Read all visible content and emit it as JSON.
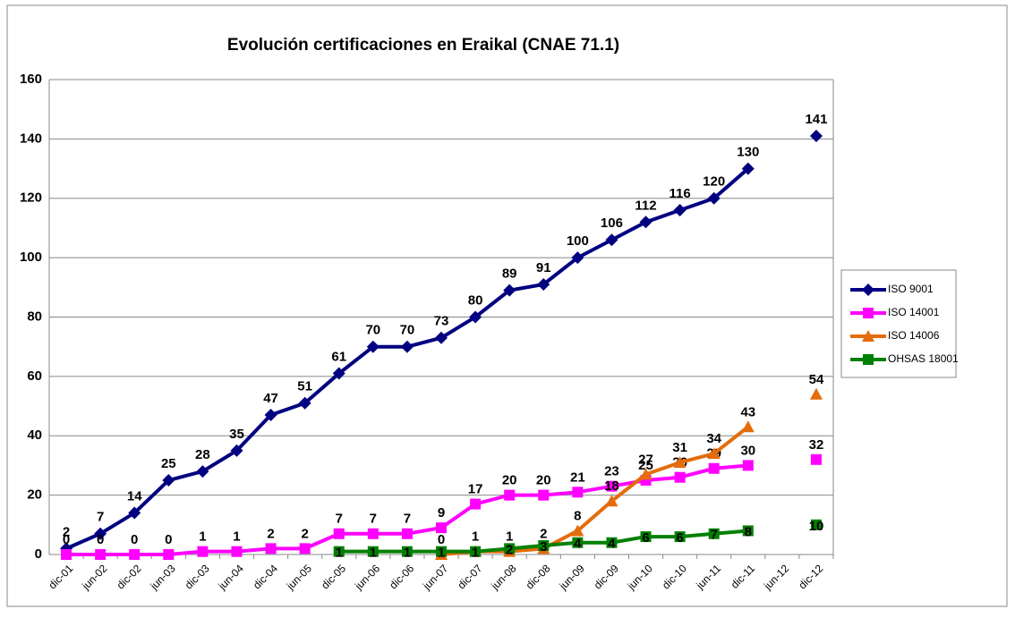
{
  "chart_data": {
    "type": "line",
    "title": "Evolución certificaciones en Eraikal (CNAE 71.1)",
    "categories": [
      "dic-01",
      "jun-02",
      "dic-02",
      "jun-03",
      "dic-03",
      "jun-04",
      "dic-04",
      "jun-05",
      "dic-05",
      "jun-06",
      "dic-06",
      "jun-07",
      "dic-07",
      "jun-08",
      "dic-08",
      "jun-09",
      "dic-09",
      "jun-10",
      "dic-10",
      "jun-11",
      "dic-11",
      "jun-12",
      "dic-12"
    ],
    "series": [
      {
        "name": "ISO 9001",
        "color": "#000080",
        "marker": "diamond",
        "values": [
          2,
          7,
          14,
          25,
          28,
          35,
          47,
          51,
          61,
          70,
          70,
          73,
          80,
          89,
          91,
          100,
          106,
          112,
          116,
          120,
          130,
          null,
          141
        ]
      },
      {
        "name": "ISO 14001",
        "color": "#ff00ff",
        "marker": "square",
        "values": [
          0,
          0,
          0,
          0,
          1,
          1,
          2,
          2,
          7,
          7,
          7,
          9,
          17,
          20,
          20,
          21,
          23,
          25,
          26,
          29,
          30,
          null,
          32
        ]
      },
      {
        "name": "ISO 14006",
        "color": "#e46c0a",
        "marker": "triangle",
        "values": [
          null,
          null,
          null,
          null,
          null,
          null,
          null,
          null,
          null,
          null,
          null,
          0,
          1,
          1,
          2,
          8,
          18,
          27,
          31,
          34,
          43,
          null,
          54
        ]
      },
      {
        "name": "OHSAS 18001",
        "color": "#008000",
        "marker": "square",
        "values": [
          null,
          null,
          null,
          null,
          null,
          null,
          null,
          null,
          1,
          1,
          1,
          1,
          1,
          2,
          3,
          4,
          4,
          6,
          6,
          7,
          8,
          null,
          10
        ]
      }
    ],
    "ylim": [
      0,
      160
    ],
    "yticks": [
      0,
      20,
      40,
      60,
      80,
      100,
      120,
      140,
      160
    ],
    "grid": true,
    "legend": "right"
  }
}
